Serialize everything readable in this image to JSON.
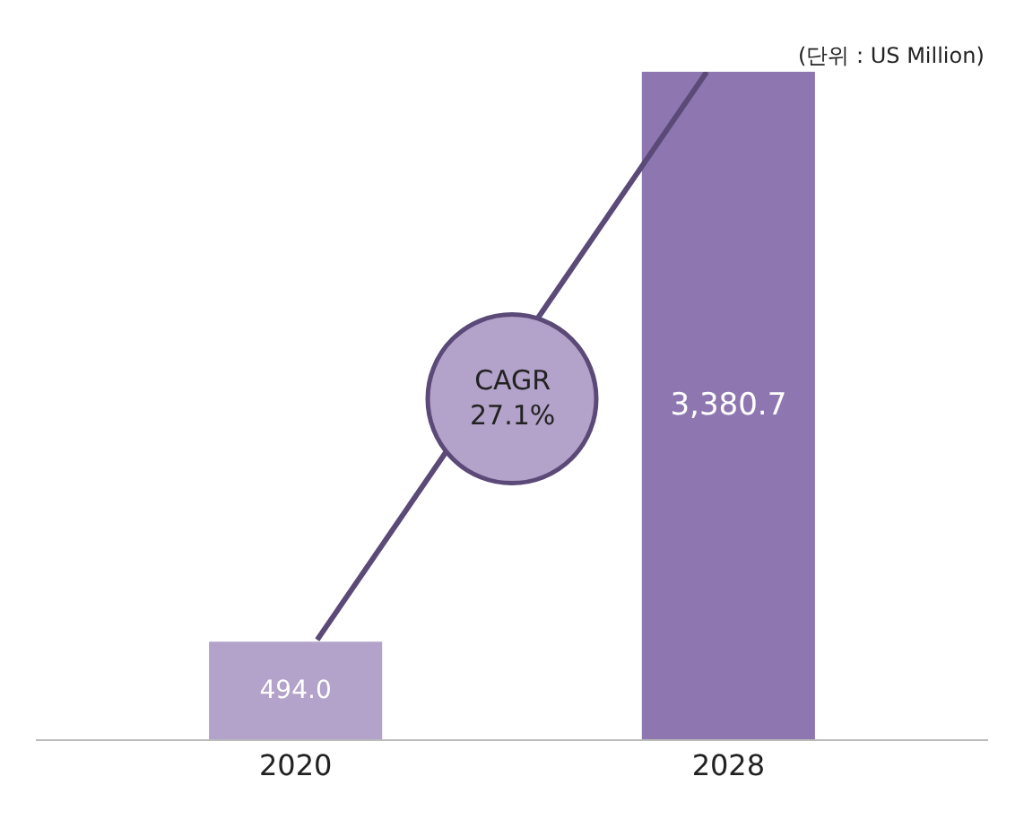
{
  "chart_data": {
    "type": "bar",
    "categories": [
      "2020",
      "2028"
    ],
    "values": [
      494.0,
      3380.7
    ],
    "colors": [
      "#b3a2c9",
      "#8e77b0"
    ],
    "value_labels": [
      "494.0",
      "3,380.7"
    ],
    "annotations": [
      "(단위 : US Million)",
      "CAGR\n27.1%"
    ],
    "legend": false
  }
}
